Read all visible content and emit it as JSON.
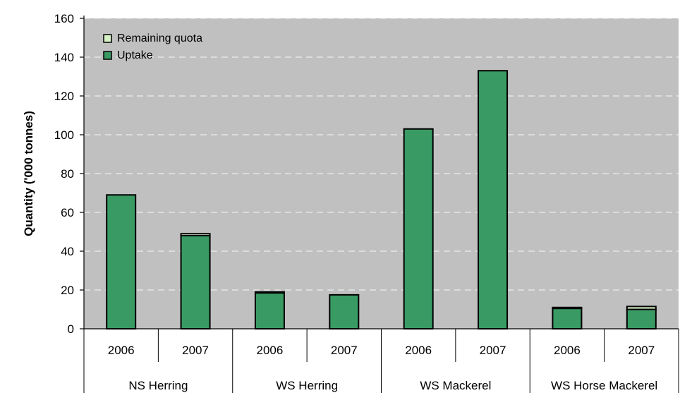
{
  "chart_data": {
    "type": "bar",
    "stacked": true,
    "ylabel": "Quantity ('000 tonnes)",
    "ylim": [
      0,
      160
    ],
    "yticks": [
      0,
      20,
      40,
      60,
      80,
      100,
      120,
      140,
      160
    ],
    "grid": true,
    "legend_position": "top-left",
    "categories": [
      {
        "group": "NS Herring",
        "year": "2006"
      },
      {
        "group": "NS Herring",
        "year": "2007"
      },
      {
        "group": "WS Herring",
        "year": "2006"
      },
      {
        "group": "WS Herring",
        "year": "2007"
      },
      {
        "group": "WS Mackerel",
        "year": "2006"
      },
      {
        "group": "WS Mackerel",
        "year": "2007"
      },
      {
        "group": "WS Horse Mackerel",
        "year": "2006"
      },
      {
        "group": "WS Horse Mackerel",
        "year": "2007"
      }
    ],
    "groups": [
      "NS Herring",
      "WS Herring",
      "WS Mackerel",
      "WS Horse Mackerel"
    ],
    "series": [
      {
        "name": "Uptake",
        "color": "#3a9a64",
        "values": [
          69,
          48,
          18.5,
          17.5,
          103,
          133,
          10.5,
          10
        ]
      },
      {
        "name": "Remaining quota",
        "color": "#d8f2c8",
        "values": [
          0,
          1,
          0.5,
          0,
          0,
          0,
          0.5,
          1.5
        ]
      }
    ],
    "legend_order": [
      "Remaining quota",
      "Uptake"
    ],
    "colors": {
      "plot_bg": "#c0c0c0",
      "grid": "#e6e6e6",
      "bar_edge": "#000000"
    }
  }
}
